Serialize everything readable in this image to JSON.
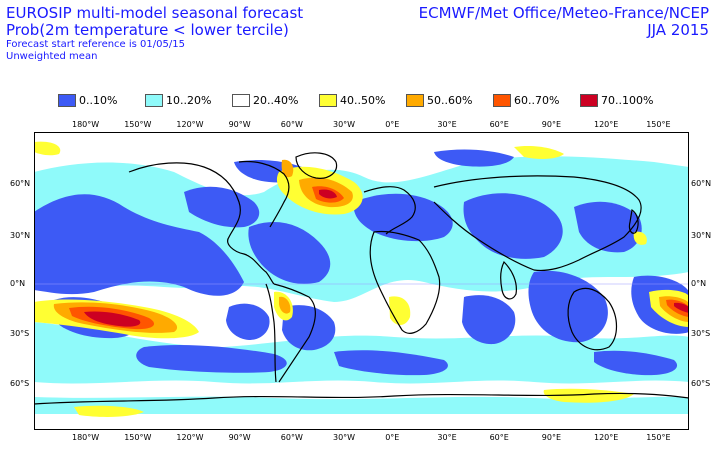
{
  "header": {
    "title_line1": "EUROSIP multi-model seasonal forecast",
    "title_line2": "Prob(2m temperature < lower tercile)",
    "subtitle_line1": "Forecast start reference is 01/05/15",
    "subtitle_line2": "Unweighted mean",
    "producers": "ECMWF/Met Office/Meteo-France/NCEP",
    "season": "JJA 2015"
  },
  "legend": [
    {
      "label": "0..10%",
      "color": "#3d5af5"
    },
    {
      "label": "10..20%",
      "color": "#8ffafa"
    },
    {
      "label": "20..40%",
      "color": "#ffffff"
    },
    {
      "label": "40..50%",
      "color": "#ffff33"
    },
    {
      "label": "50..60%",
      "color": "#ffaa00"
    },
    {
      "label": "60..70%",
      "color": "#ff5500"
    },
    {
      "label": "70..100%",
      "color": "#cc0022"
    }
  ],
  "map": {
    "longitude_labels": [
      "180°W",
      "150°W",
      "120°W",
      "90°W",
      "60°W",
      "30°W",
      "0°E",
      "30°E",
      "60°E",
      "90°E",
      "120°E",
      "150°E"
    ],
    "latitude_labels_left": [
      "60°N",
      "30°N",
      "0°N",
      "30°S",
      "60°S"
    ],
    "latitude_labels_right": [
      "60°N",
      "30°N",
      "0°N",
      "30°S",
      "60°S"
    ]
  }
}
